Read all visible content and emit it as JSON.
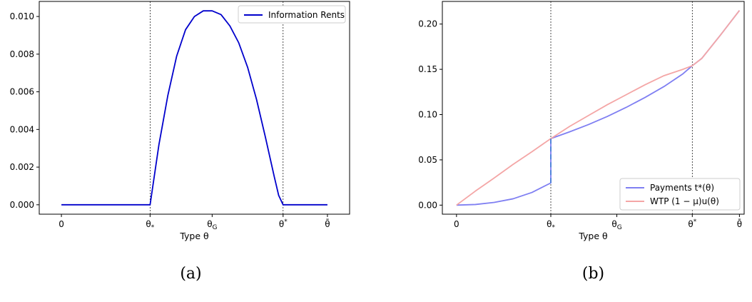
{
  "chart_data": [
    {
      "type": "line",
      "caption": "(a)",
      "xlabel": "Type θ",
      "ylabel": "",
      "xlim": [
        -0.25,
        3.25
      ],
      "ylim": [
        -0.0005,
        0.0108
      ],
      "grid": false,
      "legend_position": "top-right",
      "x_ticks": [
        {
          "x": 0,
          "label": "0"
        },
        {
          "x": 1,
          "label": "θ*"
        },
        {
          "x": 1.7,
          "label": "θG"
        },
        {
          "x": 2.5,
          "label": "θ*"
        },
        {
          "x": 3.0,
          "label": "θ̄"
        }
      ],
      "y_ticks": [
        "0.000",
        "0.002",
        "0.004",
        "0.006",
        "0.008",
        "0.010"
      ],
      "y_tick_values": [
        0,
        0.002,
        0.004,
        0.006,
        0.008,
        0.01
      ],
      "vlines": [
        1,
        2.5
      ],
      "series": [
        {
          "name": "Information Rents",
          "color": "#0000cc",
          "x": [
            0,
            1.0,
            1.1,
            1.2,
            1.3,
            1.4,
            1.5,
            1.6,
            1.7,
            1.8,
            1.9,
            2.0,
            2.1,
            2.2,
            2.3,
            2.4,
            2.45,
            2.5,
            2.6,
            2.8,
            3.0
          ],
          "y": [
            0,
            0,
            0.0032,
            0.0058,
            0.0079,
            0.0093,
            0.01,
            0.0103,
            0.0103,
            0.0101,
            0.0095,
            0.0086,
            0.0073,
            0.0056,
            0.0036,
            0.0015,
            0.0005,
            0,
            0,
            0,
            0
          ]
        }
      ]
    },
    {
      "type": "line",
      "caption": "(b)",
      "xlabel": "Type θ",
      "ylabel": "",
      "xlim": [
        -0.15,
        3.05
      ],
      "ylim": [
        -0.01,
        0.225
      ],
      "grid": false,
      "legend_position": "bottom-right",
      "x_ticks": [
        {
          "x": 0,
          "label": "0"
        },
        {
          "x": 1,
          "label": "θ*"
        },
        {
          "x": 1.7,
          "label": "θG"
        },
        {
          "x": 2.5,
          "label": "θ*"
        },
        {
          "x": 3.0,
          "label": "θ̄"
        }
      ],
      "y_ticks": [
        "0.00",
        "0.05",
        "0.10",
        "0.15",
        "0.20"
      ],
      "y_tick_values": [
        0,
        0.05,
        0.1,
        0.15,
        0.2
      ],
      "vlines": [
        1,
        2.5
      ],
      "series": [
        {
          "name": "Payments t*(θ)",
          "color": "#7f7ff2",
          "x": [
            0,
            0.2,
            0.4,
            0.6,
            0.8,
            1.0,
            1.0,
            1.2,
            1.4,
            1.6,
            1.8,
            2.0,
            2.2,
            2.4,
            2.5,
            2.6,
            2.8,
            3.0
          ],
          "y": [
            0,
            0.0007,
            0.003,
            0.007,
            0.014,
            0.0245,
            0.0735,
            0.081,
            0.089,
            0.098,
            0.108,
            0.119,
            0.131,
            0.145,
            0.154,
            0.162,
            0.188,
            0.215
          ]
        },
        {
          "name": "WTP (1 − μ)u(θ)",
          "color": "#f4a6a6",
          "x": [
            0,
            0.2,
            0.4,
            0.6,
            0.8,
            1.0,
            1.2,
            1.4,
            1.6,
            1.8,
            2.0,
            2.2,
            2.4,
            2.5,
            2.6,
            2.8,
            3.0
          ],
          "y": [
            0,
            0.0155,
            0.03,
            0.045,
            0.059,
            0.0735,
            0.087,
            0.099,
            0.111,
            0.122,
            0.133,
            0.143,
            0.15,
            0.154,
            0.162,
            0.188,
            0.215
          ]
        },
        {
          "name": "",
          "color": "#3f7fd4",
          "dashed": true,
          "x": [
            1.0,
            1.0
          ],
          "y": [
            0.0245,
            0.0735
          ]
        }
      ]
    }
  ]
}
